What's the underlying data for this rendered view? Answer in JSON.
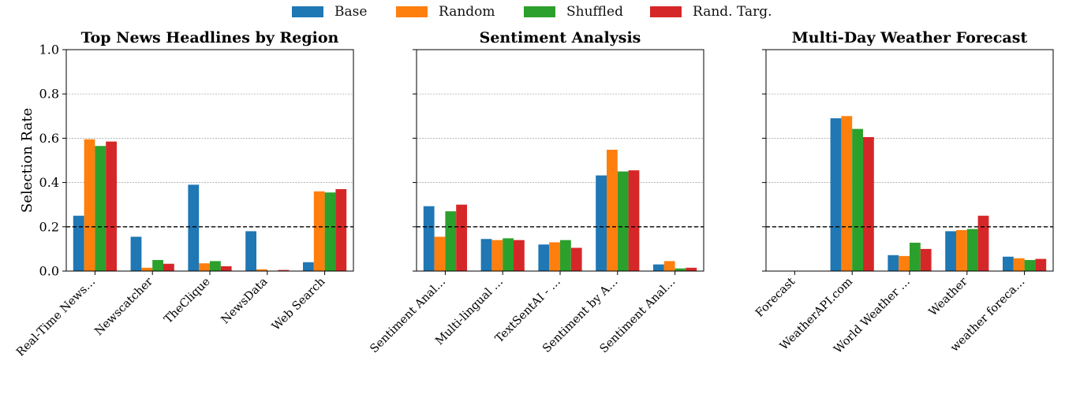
{
  "colors": {
    "Base": "#1f77b4",
    "Random": "#ff7f0e",
    "Shuffled": "#2ca02c",
    "Rand. Targ.": "#d62728"
  },
  "legend": [
    "Base",
    "Random",
    "Shuffled",
    "Rand. Targ."
  ],
  "ylabel": "Selection Rate",
  "chart_data": [
    {
      "type": "bar",
      "title": "Top News Headlines by Region",
      "categories": [
        "Real-Time News…",
        "Newscatcher",
        "TheClique",
        "NewsData",
        "Web Search"
      ],
      "ylabel": "Selection Rate",
      "ylim": [
        0,
        1.0
      ],
      "yticks": [
        "0.0",
        "0.2",
        "0.4",
        "0.6",
        "0.8",
        "1.0"
      ],
      "reference_line": 0.2,
      "grid": true,
      "series": [
        {
          "name": "Base",
          "values": [
            0.25,
            0.155,
            0.39,
            0.18,
            0.04
          ]
        },
        {
          "name": "Random",
          "values": [
            0.595,
            0.015,
            0.035,
            0.008,
            0.36
          ]
        },
        {
          "name": "Shuffled",
          "values": [
            0.565,
            0.05,
            0.045,
            0.0,
            0.355
          ]
        },
        {
          "name": "Rand. Targ.",
          "values": [
            0.585,
            0.033,
            0.022,
            0.005,
            0.37
          ]
        }
      ]
    },
    {
      "type": "bar",
      "title": "Sentiment Analysis",
      "categories": [
        "Sentiment Anal…",
        "Multi-lingual …",
        "TextSentAI - …",
        "Sentiment by A…",
        "Sentiment Anal…"
      ],
      "ylim": [
        0,
        1.0
      ],
      "reference_line": 0.2,
      "grid": true,
      "series": [
        {
          "name": "Base",
          "values": [
            0.293,
            0.145,
            0.12,
            0.432,
            0.03
          ]
        },
        {
          "name": "Random",
          "values": [
            0.155,
            0.14,
            0.13,
            0.548,
            0.045
          ]
        },
        {
          "name": "Shuffled",
          "values": [
            0.27,
            0.148,
            0.14,
            0.45,
            0.012
          ]
        },
        {
          "name": "Rand. Targ.",
          "values": [
            0.3,
            0.14,
            0.105,
            0.455,
            0.015
          ]
        }
      ]
    },
    {
      "type": "bar",
      "title": "Multi-Day Weather Forecast",
      "categories": [
        "Forecast",
        "WeatherAPI.com",
        "World Weather …",
        "Weather",
        "weather foreca…"
      ],
      "ylim": [
        0,
        1.0
      ],
      "reference_line": 0.2,
      "grid": true,
      "series": [
        {
          "name": "Base",
          "values": [
            0.0,
            0.69,
            0.072,
            0.18,
            0.065
          ]
        },
        {
          "name": "Random",
          "values": [
            0.0,
            0.7,
            0.068,
            0.185,
            0.058
          ]
        },
        {
          "name": "Shuffled",
          "values": [
            0.0,
            0.642,
            0.128,
            0.19,
            0.05
          ]
        },
        {
          "name": "Rand. Targ.",
          "values": [
            0.0,
            0.605,
            0.1,
            0.25,
            0.055
          ]
        }
      ]
    }
  ]
}
